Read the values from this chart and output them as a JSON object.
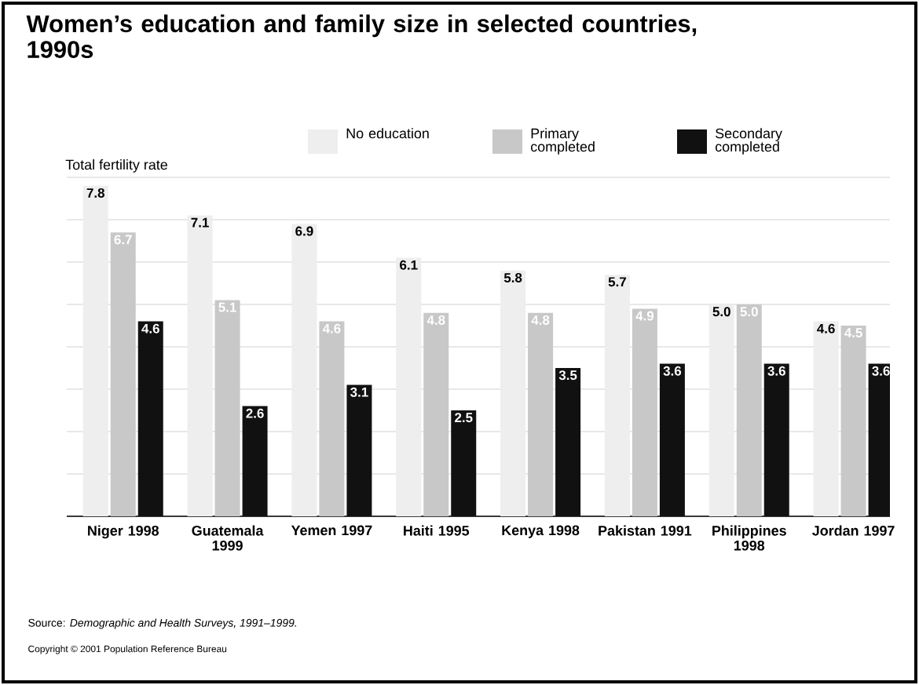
{
  "chart_data": {
    "type": "bar",
    "title": "Women’s education and family size in selected countries, 1990s",
    "ylabel": "Total fertility rate",
    "categories": [
      "Niger 1998",
      "Guatemala 1999",
      "Yemen 1997",
      "Haiti 1995",
      "Kenya 1998",
      "Pakistan 1991",
      "Philippines 1998",
      "Jordan 1997"
    ],
    "series": [
      {
        "name": "No education",
        "color": "#eeeeee",
        "values": [
          7.8,
          7.1,
          6.9,
          6.1,
          5.8,
          5.7,
          5.0,
          4.6
        ],
        "value_labels": [
          "7.8",
          "7.1",
          "6.9",
          "6.1",
          "5.8",
          "5.7",
          "5.0",
          "4.6"
        ]
      },
      {
        "name": "Primary completed",
        "color": "#c8c8c8",
        "values": [
          6.7,
          5.1,
          4.6,
          4.8,
          4.8,
          4.9,
          5.0,
          4.5
        ],
        "value_labels": [
          "6.7",
          "5.1",
          "4.6",
          "4.8",
          "4.8",
          "4.9",
          "5.0",
          "4.5"
        ]
      },
      {
        "name": "Secondary completed",
        "color": "#111111",
        "values": [
          4.6,
          2.6,
          3.1,
          2.5,
          3.5,
          3.6,
          3.6,
          3.6
        ],
        "value_labels": [
          "4.6",
          "2.6",
          "3.1",
          "2.5",
          "3.5",
          "3.6",
          "3.6",
          "3.6"
        ]
      }
    ],
    "ylim": [
      0,
      8
    ],
    "yticks": [
      {
        "value": 0,
        "label": null
      },
      {
        "value": 1,
        "label": null
      },
      {
        "value": 2,
        "label": null
      },
      {
        "value": 3,
        "label": null
      },
      {
        "value": 4,
        "label": null
      },
      {
        "value": 5,
        "label": null
      },
      {
        "value": 6,
        "label": null
      },
      {
        "value": 7,
        "label": null
      },
      {
        "value": 8,
        "label": null
      }
    ],
    "tick_labels": "x",
    "grid": "y",
    "legend": "top",
    "annotations": [
      "Source: *Demographic and Health Surveys, 1991–1999.*",
      "Copyright © 2001 Population Reference Bureau"
    ]
  }
}
